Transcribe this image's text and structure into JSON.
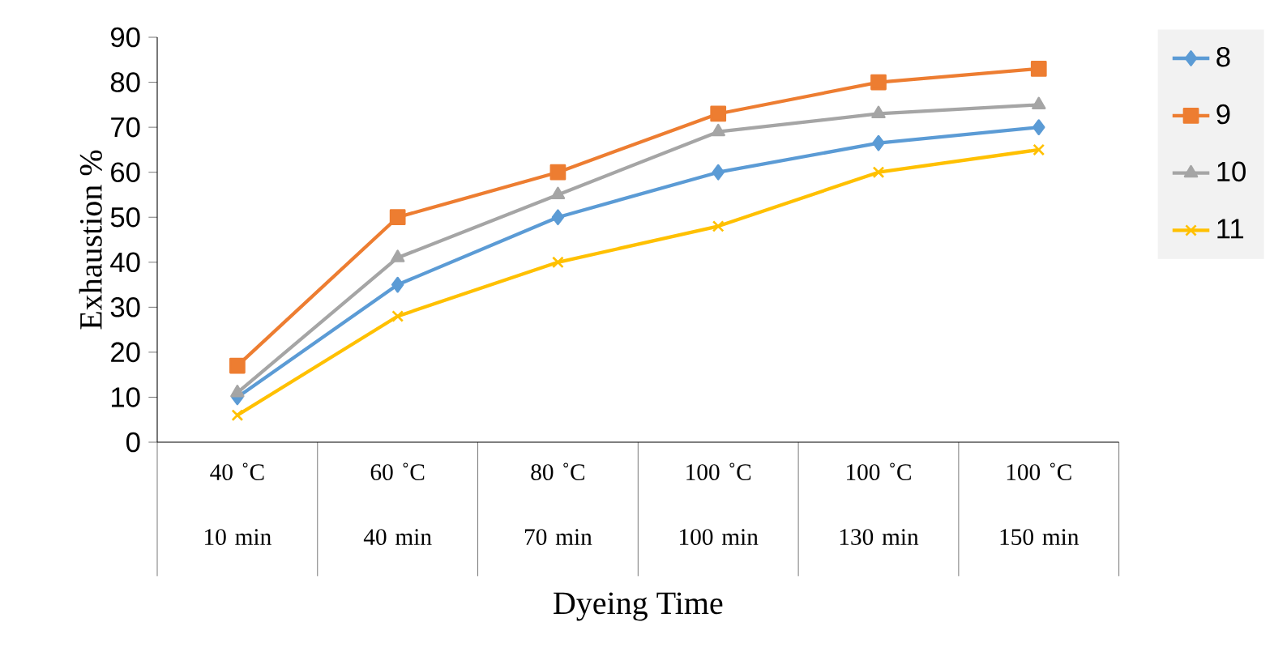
{
  "chart_data": {
    "type": "line",
    "xlabel": "Dyeing Time",
    "ylabel": "Exhaustion %",
    "categories": [
      "40 ˚C 10 min",
      "60 ˚C 40 min",
      "80 ˚C 70 min",
      "100 ˚C 100 min",
      "100 ˚C 130 min",
      "100 ˚C 150 min"
    ],
    "ylim": [
      0,
      90
    ],
    "yticks": [
      0,
      10,
      20,
      30,
      40,
      50,
      60,
      70,
      80,
      90
    ],
    "grid": false,
    "legend": "right",
    "line_style": "solid",
    "series": [
      {
        "name": "8",
        "color": "#5b9bd5",
        "marker": "diamond",
        "values": [
          10,
          35,
          50,
          60,
          66.5,
          70
        ]
      },
      {
        "name": "9",
        "color": "#ed7d31",
        "marker": "square",
        "values": [
          17,
          50,
          60,
          73,
          80,
          83
        ]
      },
      {
        "name": "10",
        "color": "#a5a5a5",
        "marker": "triangle",
        "values": [
          11,
          41,
          55,
          69,
          73,
          75
        ]
      },
      {
        "name": "11",
        "color": "#ffc000",
        "marker": "cross",
        "values": [
          6,
          28,
          40,
          48,
          60,
          65
        ]
      }
    ]
  }
}
